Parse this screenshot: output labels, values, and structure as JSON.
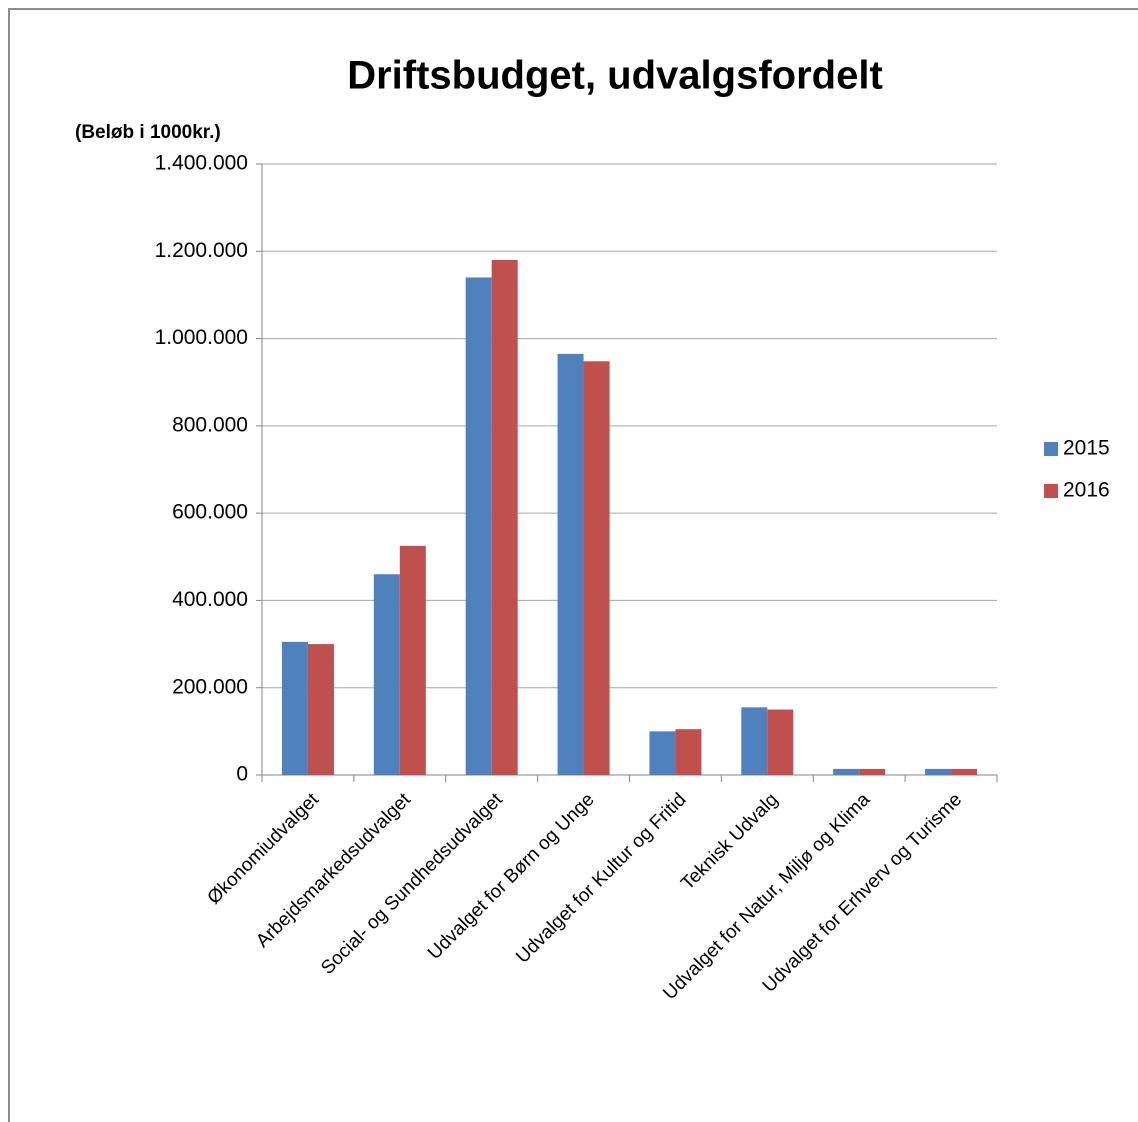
{
  "chart_data": {
    "type": "bar",
    "title": "Driftsbudget, udvalgsfordelt",
    "y_axis_label": "(Beløb i 1000kr.)",
    "categories": [
      "Økonomiudvalget",
      "Arbejdsmarkedsudvalget",
      "Social- og Sundhedsudvalget",
      "Udvalget for Børn og Unge",
      "Udvalget for Kultur og Fritid",
      "Teknisk Udvalg",
      "Udvalget for Natur, Miljø og Klima",
      "Udvalget for Erhverv og Turisme"
    ],
    "series": [
      {
        "name": "2015",
        "color": "#4f81bd",
        "values": [
          305000,
          460000,
          1140000,
          965000,
          100000,
          155000,
          14000,
          14000
        ]
      },
      {
        "name": "2016",
        "color": "#c0504d",
        "values": [
          300000,
          525000,
          1180000,
          948000,
          105000,
          150000,
          14000,
          14000
        ]
      }
    ],
    "ylim": [
      0,
      1400000
    ],
    "yticks": [
      0,
      {
        "value": 200000,
        "label": "200.000"
      },
      {
        "value": 400000,
        "label": "400.000"
      },
      {
        "value": 600000,
        "label": "600.000"
      },
      {
        "value": 800000,
        "label": "800.000"
      },
      {
        "value": 1000000,
        "label": "1.000.000"
      },
      {
        "value": 1200000,
        "label": "1.200.000"
      },
      {
        "value": 1400000,
        "label": "1.400.000"
      }
    ],
    "grid": true,
    "legend": "right"
  }
}
